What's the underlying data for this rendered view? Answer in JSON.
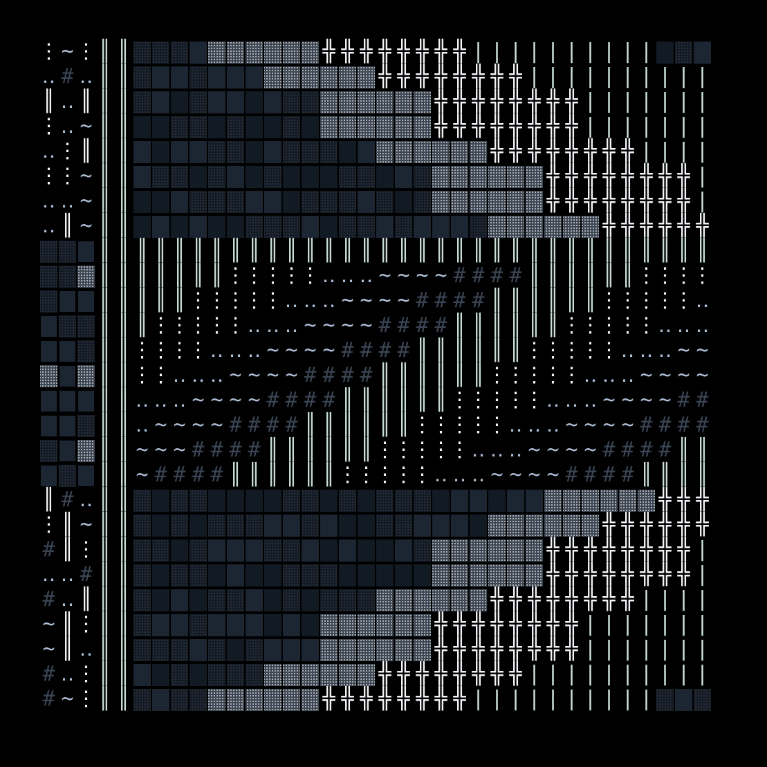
{
  "title": "",
  "palette": {
    "background": "#000000",
    "white": "#f2f4f7",
    "mint": "#c8ddd6",
    "pale_blue": "#aebfd6",
    "steel": "#6f7e93",
    "slate": "#3a4554",
    "dark_block": "#121a24",
    "mid_block": "#1c2633",
    "dot_block": "#8a93a0",
    "dot_block_dim": "#3b4552"
  },
  "glyph_set": {
    "plus_cross": "╬",
    "double_bar": "║",
    "single_bar": "|",
    "hash": "#",
    "colon_dots": "⋮",
    "tilde": "~",
    "dots": "‥"
  },
  "bands": [
    {
      "id": "top-panel",
      "pattern": "staircase-blocks-right"
    },
    {
      "id": "middle-panel",
      "pattern": "staircase-bars-center"
    },
    {
      "id": "bottom-panel",
      "pattern": "staircase-blocks-mirrored"
    }
  ]
}
